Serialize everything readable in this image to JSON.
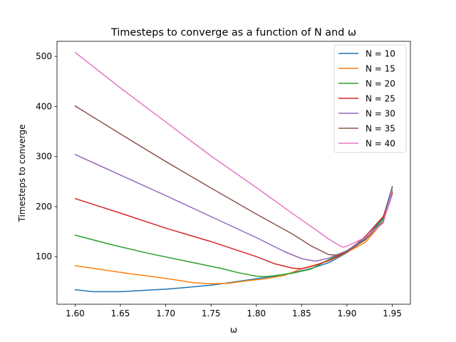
{
  "chart_data": {
    "type": "line",
    "title": "Timesteps to converge as a function of N and ω",
    "xlabel": "ω",
    "ylabel": "Timesteps to converge",
    "xlim": [
      1.58,
      1.97
    ],
    "ylim": [
      5,
      530
    ],
    "xticks": [
      1.6,
      1.65,
      1.7,
      1.75,
      1.8,
      1.85,
      1.9,
      1.95
    ],
    "xtick_labels": [
      "1.60",
      "1.65",
      "1.70",
      "1.75",
      "1.80",
      "1.85",
      "1.90",
      "1.95"
    ],
    "yticks": [
      100,
      200,
      300,
      400,
      500
    ],
    "ytick_labels": [
      "100",
      "200",
      "300",
      "400",
      "500"
    ],
    "grid": false,
    "legend_position": "top-right",
    "series": [
      {
        "name": "N = 10",
        "color": "#1f77b4",
        "x": [
          1.6,
          1.62,
          1.65,
          1.68,
          1.7,
          1.72,
          1.75,
          1.77,
          1.8,
          1.82,
          1.84,
          1.86,
          1.88,
          1.9,
          1.92,
          1.94,
          1.95
        ],
        "y": [
          34,
          30,
          30,
          33,
          35,
          38,
          43,
          48,
          56,
          61,
          68,
          76,
          88,
          108,
          135,
          178,
          240
        ]
      },
      {
        "name": "N = 15",
        "color": "#ff7f0e",
        "x": [
          1.6,
          1.63,
          1.66,
          1.69,
          1.71,
          1.73,
          1.75,
          1.77,
          1.79,
          1.81,
          1.83,
          1.85,
          1.87,
          1.89,
          1.9,
          1.92,
          1.94,
          1.95
        ],
        "y": [
          82,
          74,
          66,
          59,
          54,
          48,
          46,
          47,
          52,
          56,
          62,
          76,
          86,
          100,
          109,
          128,
          170,
          227
        ]
      },
      {
        "name": "N = 20",
        "color": "#2ca02c",
        "x": [
          1.6,
          1.64,
          1.68,
          1.72,
          1.76,
          1.78,
          1.8,
          1.81,
          1.82,
          1.84,
          1.86,
          1.88,
          1.9,
          1.92,
          1.94,
          1.95
        ],
        "y": [
          143,
          124,
          107,
          92,
          77,
          68,
          61,
          60,
          62,
          67,
          75,
          94,
          112,
          135,
          175,
          232
        ]
      },
      {
        "name": "N = 25",
        "color": "#d62728",
        "x": [
          1.6,
          1.65,
          1.7,
          1.75,
          1.8,
          1.82,
          1.84,
          1.85,
          1.86,
          1.88,
          1.9,
          1.92,
          1.94,
          1.95
        ],
        "y": [
          216,
          187,
          157,
          130,
          100,
          86,
          77,
          76,
          80,
          92,
          110,
          140,
          180,
          228
        ]
      },
      {
        "name": "N = 30",
        "color": "#9467bd",
        "x": [
          1.6,
          1.65,
          1.7,
          1.75,
          1.8,
          1.83,
          1.85,
          1.865,
          1.88,
          1.9,
          1.92,
          1.94,
          1.95
        ],
        "y": [
          304,
          263,
          222,
          180,
          138,
          111,
          96,
          91,
          97,
          112,
          137,
          170,
          225
        ]
      },
      {
        "name": "N = 35",
        "color": "#8c564b",
        "x": [
          1.6,
          1.65,
          1.7,
          1.75,
          1.8,
          1.84,
          1.86,
          1.88,
          1.89,
          1.9,
          1.92,
          1.94,
          1.95
        ],
        "y": [
          401,
          345,
          290,
          237,
          185,
          145,
          122,
          104,
          103,
          110,
          133,
          170,
          238
        ]
      },
      {
        "name": "N = 40",
        "color": "#e377c2",
        "x": [
          1.6,
          1.65,
          1.7,
          1.75,
          1.8,
          1.84,
          1.87,
          1.88,
          1.89,
          1.895,
          1.9,
          1.92,
          1.94,
          1.95
        ],
        "y": [
          508,
          437,
          369,
          301,
          238,
          186,
          148,
          135,
          124,
          119,
          121,
          138,
          167,
          235
        ]
      }
    ]
  }
}
